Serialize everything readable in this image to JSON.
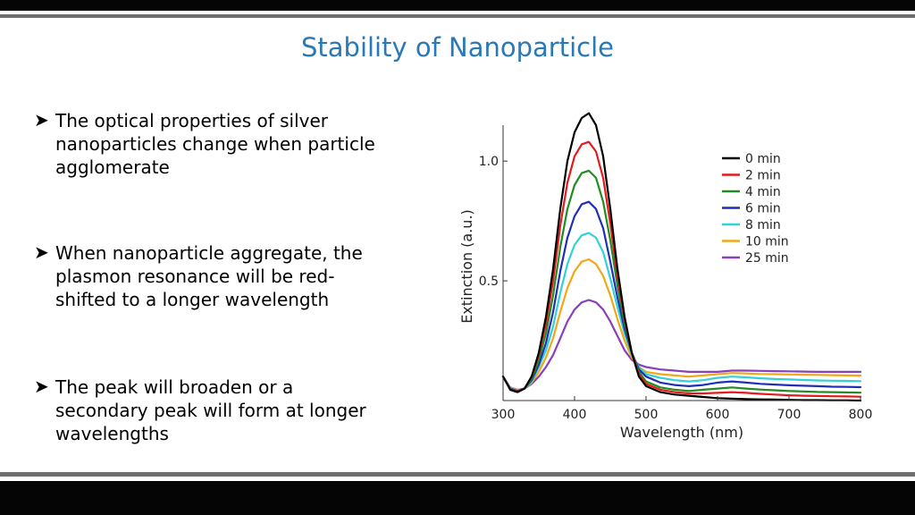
{
  "slide": {
    "title": "Stability of Nanoparticle",
    "bullets": [
      {
        "text": "The optical properties of silver\nnanoparticles change when particle\nagglomerate"
      },
      {
        "text": "When nanoparticle aggregate, the\nplasmon resonance will be red-\nshifted to a longer wavelength"
      },
      {
        "text": "The peak will broaden or a\nsecondary peak will form at longer\nwavelengths"
      }
    ],
    "bullet_icon": "right-arrowhead-icon",
    "colors": {
      "title": "#2a78b5",
      "bars": "#050505",
      "rules": "#6e6e6e"
    }
  },
  "chart_data": {
    "type": "line",
    "xlabel": "Wavelength (nm)",
    "ylabel": "Extinction (a.u.)",
    "xlim": [
      300,
      800
    ],
    "ylim": [
      0,
      1.15
    ],
    "xticks": [
      300,
      400,
      500,
      600,
      700,
      800
    ],
    "yticks": [
      0.5,
      1.0
    ],
    "ytick_labels": [
      "0.5",
      "1.0"
    ],
    "grid": false,
    "legend": "top-right",
    "x": [
      300,
      310,
      320,
      330,
      340,
      350,
      360,
      370,
      380,
      390,
      400,
      410,
      420,
      430,
      440,
      450,
      460,
      470,
      480,
      490,
      500,
      520,
      540,
      560,
      580,
      600,
      620,
      640,
      660,
      680,
      700,
      720,
      740,
      760,
      780,
      800
    ],
    "series": [
      {
        "name": "0 min",
        "color": "#000000",
        "values": [
          0.1,
          0.045,
          0.035,
          0.05,
          0.1,
          0.2,
          0.35,
          0.55,
          0.8,
          1.0,
          1.12,
          1.18,
          1.2,
          1.15,
          1.02,
          0.8,
          0.55,
          0.35,
          0.2,
          0.1,
          0.06,
          0.035,
          0.025,
          0.02,
          0.015,
          0.01,
          0.008,
          0.006,
          0.005,
          0.004,
          0.003,
          0.002,
          0.002,
          0.001,
          0.001,
          0.0
        ]
      },
      {
        "name": "2 min",
        "color": "#e41a1c",
        "values": [
          0.1,
          0.047,
          0.037,
          0.05,
          0.1,
          0.19,
          0.32,
          0.5,
          0.73,
          0.91,
          1.02,
          1.07,
          1.08,
          1.04,
          0.93,
          0.74,
          0.52,
          0.34,
          0.2,
          0.11,
          0.07,
          0.045,
          0.035,
          0.03,
          0.03,
          0.032,
          0.035,
          0.032,
          0.028,
          0.025,
          0.022,
          0.02,
          0.019,
          0.018,
          0.017,
          0.016
        ]
      },
      {
        "name": "4 min",
        "color": "#228b22",
        "values": [
          0.1,
          0.048,
          0.038,
          0.05,
          0.09,
          0.17,
          0.28,
          0.44,
          0.64,
          0.8,
          0.9,
          0.95,
          0.96,
          0.93,
          0.83,
          0.67,
          0.48,
          0.32,
          0.2,
          0.12,
          0.08,
          0.055,
          0.045,
          0.04,
          0.045,
          0.05,
          0.055,
          0.05,
          0.046,
          0.043,
          0.04,
          0.038,
          0.036,
          0.035,
          0.034,
          0.033
        ]
      },
      {
        "name": "6 min",
        "color": "#1f2fb5",
        "values": [
          0.1,
          0.05,
          0.04,
          0.05,
          0.085,
          0.15,
          0.24,
          0.37,
          0.54,
          0.68,
          0.77,
          0.82,
          0.83,
          0.8,
          0.72,
          0.58,
          0.43,
          0.3,
          0.2,
          0.13,
          0.1,
          0.075,
          0.065,
          0.06,
          0.065,
          0.075,
          0.08,
          0.075,
          0.07,
          0.067,
          0.064,
          0.062,
          0.06,
          0.058,
          0.057,
          0.056
        ]
      },
      {
        "name": "8 min",
        "color": "#33d0d8",
        "values": [
          0.1,
          0.052,
          0.042,
          0.05,
          0.08,
          0.14,
          0.21,
          0.31,
          0.45,
          0.57,
          0.65,
          0.69,
          0.7,
          0.68,
          0.62,
          0.51,
          0.39,
          0.28,
          0.19,
          0.14,
          0.11,
          0.095,
          0.085,
          0.08,
          0.085,
          0.095,
          0.1,
          0.097,
          0.093,
          0.09,
          0.088,
          0.086,
          0.084,
          0.083,
          0.082,
          0.081
        ]
      },
      {
        "name": "10 min",
        "color": "#f0a818",
        "values": [
          0.1,
          0.054,
          0.044,
          0.05,
          0.075,
          0.12,
          0.18,
          0.26,
          0.37,
          0.47,
          0.54,
          0.58,
          0.59,
          0.57,
          0.52,
          0.44,
          0.34,
          0.25,
          0.18,
          0.14,
          0.12,
          0.11,
          0.105,
          0.1,
          0.105,
          0.11,
          0.115,
          0.113,
          0.111,
          0.11,
          0.109,
          0.108,
          0.107,
          0.106,
          0.105,
          0.104
        ]
      },
      {
        "name": "25 min",
        "color": "#8a3fb8",
        "values": [
          0.1,
          0.055,
          0.045,
          0.05,
          0.07,
          0.1,
          0.14,
          0.19,
          0.26,
          0.33,
          0.38,
          0.41,
          0.42,
          0.41,
          0.38,
          0.33,
          0.27,
          0.21,
          0.17,
          0.15,
          0.14,
          0.13,
          0.125,
          0.12,
          0.12,
          0.12,
          0.125,
          0.125,
          0.124,
          0.123,
          0.122,
          0.121,
          0.12,
          0.12,
          0.12,
          0.12
        ]
      }
    ]
  }
}
